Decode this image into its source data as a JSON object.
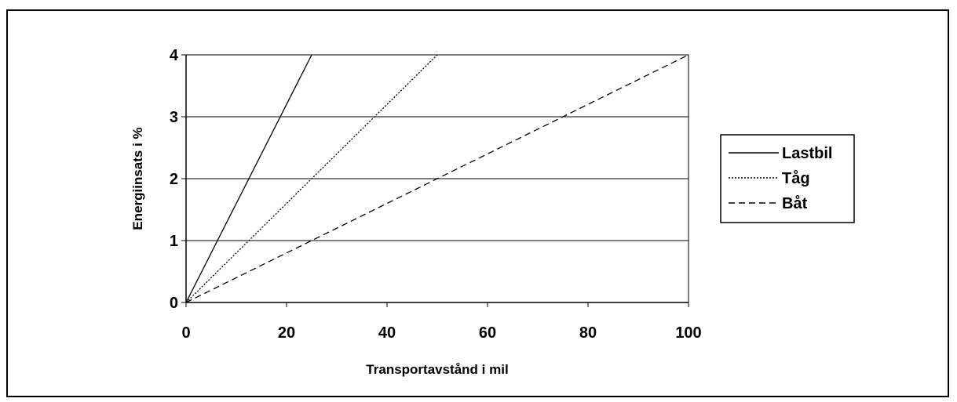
{
  "chart_data": {
    "type": "line",
    "title": "",
    "xlabel": "Transportavstånd i mil",
    "ylabel": "Energiinsats i %",
    "xlim": [
      0,
      100
    ],
    "ylim": [
      0,
      4
    ],
    "xticks": [
      0,
      20,
      40,
      60,
      80,
      100
    ],
    "yticks": [
      0,
      1,
      2,
      3,
      4
    ],
    "grid": "horizontal",
    "legend": "right",
    "series": [
      {
        "name": "Lastbil",
        "x": [
          0,
          25
        ],
        "y": [
          0,
          4
        ],
        "style": "solid",
        "color": "#000000"
      },
      {
        "name": "Tåg",
        "x": [
          0,
          50
        ],
        "y": [
          0,
          4
        ],
        "style": "dotted",
        "color": "#000000"
      },
      {
        "name": "Båt",
        "x": [
          0,
          100
        ],
        "y": [
          0,
          4
        ],
        "style": "dashed",
        "color": "#000000"
      }
    ]
  }
}
